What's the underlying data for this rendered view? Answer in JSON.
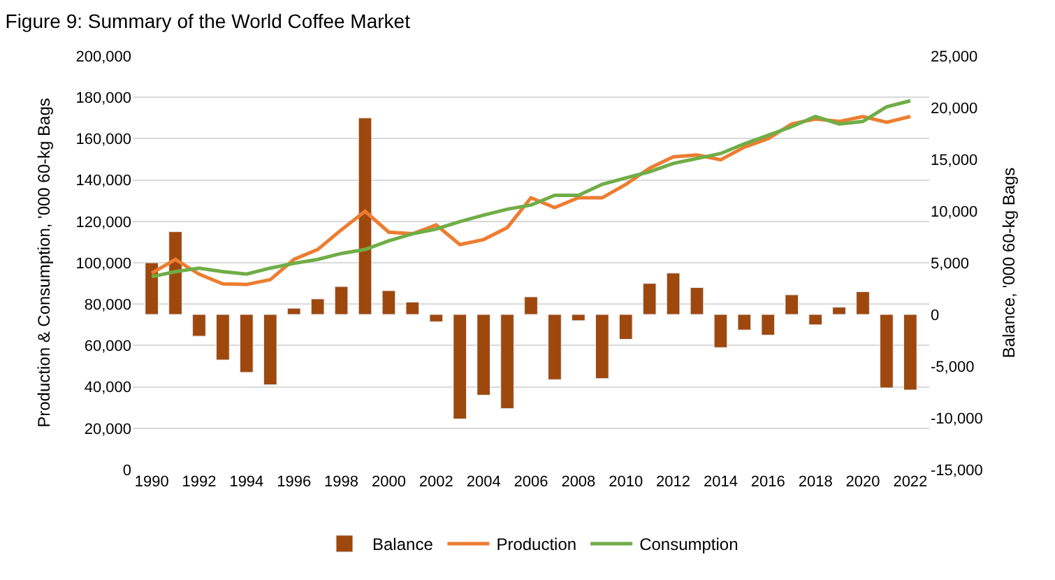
{
  "chart_data": {
    "type": "line",
    "title": "Figure 9: Summary of the World Coffee Market",
    "ylabel": "Production & Consumption, '000 60-kg Bags",
    "y2label": "Balance, '000 60-kg Bags",
    "x": [
      1990,
      1991,
      1992,
      1993,
      1994,
      1995,
      1996,
      1997,
      1998,
      1999,
      2000,
      2001,
      2002,
      2003,
      2004,
      2005,
      2006,
      2007,
      2008,
      2009,
      2010,
      2011,
      2012,
      2013,
      2014,
      2015,
      2016,
      2017,
      2018,
      2019,
      2020,
      2021,
      2022
    ],
    "series": [
      {
        "name": "Balance",
        "type": "bar",
        "axis": "y2",
        "color": "#9e480e",
        "values": [
          5000,
          8000,
          -2100,
          -4400,
          -5600,
          -6800,
          600,
          1500,
          2700,
          19000,
          2300,
          1200,
          -700,
          -10100,
          -7800,
          -9100,
          1700,
          -6300,
          -600,
          -6200,
          -2400,
          3000,
          4000,
          2600,
          -3200,
          -1500,
          -2000,
          1900,
          -1000,
          700,
          2200,
          -7100,
          -7300
        ]
      },
      {
        "name": "Production",
        "type": "line",
        "color": "#ed7d31",
        "values": [
          95000,
          101600,
          94500,
          89800,
          89500,
          91800,
          101600,
          106400,
          115900,
          124900,
          114800,
          114000,
          118300,
          108800,
          111200,
          117000,
          131400,
          126700,
          131400,
          131400,
          137900,
          145700,
          151200,
          152100,
          149800,
          155900,
          160000,
          167100,
          169500,
          168300,
          170700,
          167900,
          170700
        ]
      },
      {
        "name": "Consumption",
        "color": "#70ad47",
        "values": [
          93300,
          95700,
          97400,
          95700,
          94500,
          97400,
          99700,
          101600,
          104500,
          106400,
          110600,
          114000,
          116300,
          119900,
          123000,
          125900,
          127900,
          132600,
          132600,
          137900,
          141000,
          144000,
          148000,
          150400,
          152800,
          157500,
          161600,
          165800,
          170700,
          167100,
          168300,
          175400,
          178300
        ]
      }
    ],
    "xlim": [
      1989.2,
      2022.8
    ],
    "xticks": [
      1990,
      1992,
      1994,
      1996,
      1998,
      2000,
      2002,
      2004,
      2006,
      2008,
      2010,
      2012,
      2014,
      2016,
      2018,
      2020,
      2022
    ],
    "ylim": [
      0,
      200000
    ],
    "yticks": [
      {
        "value": 0,
        "label": "0"
      },
      {
        "value": 20000,
        "label": "20,000"
      },
      {
        "value": 40000,
        "label": "40,000"
      },
      {
        "value": 60000,
        "label": "60,000"
      },
      {
        "value": 80000,
        "label": "80,000"
      },
      {
        "value": 100000,
        "label": "100,000"
      },
      {
        "value": 120000,
        "label": "120,000"
      },
      {
        "value": 140000,
        "label": "140,000"
      },
      {
        "value": 160000,
        "label": "160,000"
      },
      {
        "value": 180000,
        "label": "180,000"
      },
      {
        "value": 200000,
        "label": "200,000"
      }
    ],
    "y2lim": [
      -15000,
      25000
    ],
    "y2ticks": [
      {
        "value": -15000,
        "label": "-15,000"
      },
      {
        "value": -10000,
        "label": "-10,000"
      },
      {
        "value": -5000,
        "label": "-5,000"
      },
      {
        "value": 0,
        "label": "0"
      },
      {
        "value": 5000,
        "label": "5,000"
      },
      {
        "value": 10000,
        "label": "10,000"
      },
      {
        "value": 15000,
        "label": "15,000"
      },
      {
        "value": 20000,
        "label": "20,000"
      },
      {
        "value": 25000,
        "label": "25,000"
      }
    ],
    "grid": "y",
    "legend": "bottom",
    "marker": "none",
    "line_style": "solid"
  }
}
